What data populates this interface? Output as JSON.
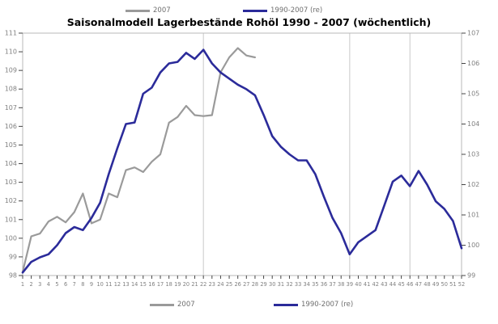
{
  "title": "Saisonalmodell Lagerbestände Rohöl 1990 - 2007 (wöchentlich)",
  "legend": {
    "items": [
      {
        "label": "2007",
        "color": "#9a9a9a"
      },
      {
        "label": "1990-2007 (re)",
        "color": "#2b2b9a"
      }
    ]
  },
  "colors": {
    "series_2007": "#9a9a9a",
    "series_avg": "#2b2b9a",
    "plot_border": "#b8b8b8",
    "gridline": "#c9c9c9",
    "tick": "#444444",
    "tick_label": "#808080",
    "background": "#ffffff"
  },
  "chart_data": {
    "type": "line",
    "title": "Saisonalmodell Lagerbestände Rohöl 1990 - 2007 (wöchentlich)",
    "xlabel": "",
    "ylabel_left": "",
    "ylabel_right": "",
    "x": [
      1,
      2,
      3,
      4,
      5,
      6,
      7,
      8,
      9,
      10,
      11,
      12,
      13,
      14,
      15,
      16,
      17,
      18,
      19,
      20,
      21,
      22,
      23,
      24,
      25,
      26,
      27,
      28,
      29,
      30,
      31,
      32,
      33,
      34,
      35,
      36,
      37,
      38,
      39,
      40,
      41,
      42,
      43,
      44,
      45,
      46,
      47,
      48,
      49,
      50,
      51,
      52
    ],
    "x_tick_labels": [
      "1",
      "2",
      "3",
      "4",
      "5",
      "6",
      "7",
      "8",
      "9",
      "10",
      "11",
      "12",
      "13",
      "14",
      "15",
      "16",
      "17",
      "18",
      "19",
      "20",
      "21",
      "22",
      "23",
      "24",
      "25",
      "26",
      "27",
      "28",
      "29",
      "30",
      "31",
      "32",
      "33",
      "34",
      "35",
      "36",
      "37",
      "38",
      "39",
      "40",
      "41",
      "42",
      "43",
      "44",
      "45",
      "46",
      "47",
      "48",
      "49",
      "50",
      "51",
      "52"
    ],
    "left_axis": {
      "min": 98,
      "max": 111,
      "ticks": [
        98,
        99,
        100,
        101,
        102,
        103,
        104,
        105,
        106,
        107,
        108,
        109,
        110,
        111
      ]
    },
    "right_axis": {
      "min": 99,
      "max": 107,
      "ticks": [
        99,
        100,
        101,
        102,
        103,
        104,
        105,
        106,
        107
      ]
    },
    "gridlines_at_weeks": [
      22,
      39,
      46
    ],
    "grid": "vertical only",
    "legend_position": "top and bottom",
    "series": [
      {
        "name": "2007",
        "axis": "left",
        "color": "#9a9a9a",
        "width": 2.2,
        "values": [
          98.2,
          100.1,
          100.25,
          100.9,
          101.15,
          100.85,
          101.4,
          102.4,
          100.8,
          101.0,
          102.4,
          102.2,
          103.65,
          103.8,
          103.55,
          104.1,
          104.5,
          106.2,
          106.5,
          107.1,
          106.6,
          106.55,
          106.6,
          108.9,
          109.7,
          110.2,
          109.8,
          109.7
        ]
      },
      {
        "name": "1990-2007 (re)",
        "axis": "right",
        "color": "#2b2b9a",
        "width": 2.6,
        "values": [
          99.1,
          99.45,
          99.6,
          99.7,
          100.0,
          100.4,
          100.6,
          100.5,
          100.9,
          101.4,
          102.35,
          103.2,
          104.0,
          104.05,
          105.0,
          105.2,
          105.7,
          106.0,
          106.05,
          106.35,
          106.15,
          106.45,
          106.0,
          105.7,
          105.5,
          105.3,
          105.15,
          104.95,
          104.3,
          103.6,
          103.25,
          103.0,
          102.8,
          102.8,
          102.35,
          101.6,
          100.9,
          100.4,
          99.7,
          100.1,
          100.3,
          100.5,
          101.3,
          102.1,
          102.3,
          101.95,
          102.45,
          102.0,
          101.45,
          101.2,
          100.8,
          99.9
        ]
      }
    ]
  }
}
